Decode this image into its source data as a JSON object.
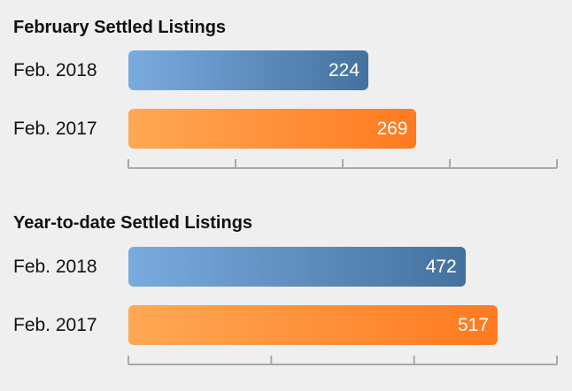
{
  "colors": {
    "background": "#efefef",
    "series_2018": [
      "#7aabdf",
      "#44729f"
    ],
    "series_2017": [
      "#ffa855",
      "#ff7a20"
    ],
    "axis": "#a8a8a8"
  },
  "chart_data": [
    {
      "type": "bar",
      "orientation": "horizontal",
      "title": "February Settled Listings",
      "categories": [
        "Feb. 2018",
        "Feb. 2017"
      ],
      "values": [
        224,
        269
      ],
      "value_labels": [
        "224",
        "269"
      ],
      "xlim": [
        0,
        400
      ],
      "grid": false
    },
    {
      "type": "bar",
      "orientation": "horizontal",
      "title": "Year-to-date Settled Listings",
      "categories": [
        "Feb. 2018",
        "Feb. 2017"
      ],
      "values": [
        472,
        517
      ],
      "value_labels": [
        "472",
        "517"
      ],
      "xlim": [
        0,
        600
      ],
      "grid": false
    }
  ]
}
